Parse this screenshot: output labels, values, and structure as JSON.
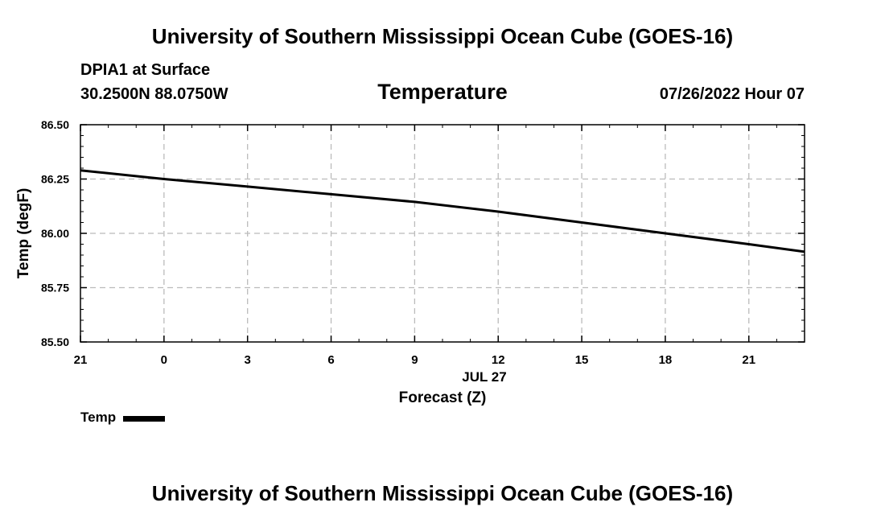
{
  "header": {
    "title": "University of Southern Mississippi Ocean Cube (GOES-16)",
    "station": "DPIA1 at Surface",
    "coordinates": "30.2500N  88.0750W",
    "chart_title": "Temperature",
    "valid_time": "07/26/2022 Hour 07"
  },
  "legend": {
    "label": "Temp"
  },
  "footer": {
    "title": "University of Southern Mississippi Ocean Cube (GOES-16)"
  },
  "colors": {
    "line": "#000000",
    "grid": "#bbbbbb",
    "background": "#ffffff"
  },
  "chart_data": {
    "type": "line",
    "title": "Temperature",
    "xlabel": "Forecast (Z)",
    "ylabel": "Temp (degF)",
    "date_label": "JUL 27",
    "xlim": [
      0,
      26
    ],
    "ylim": [
      85.5,
      86.5
    ],
    "x_ticks": [
      0,
      3,
      6,
      9,
      12,
      15,
      18,
      21,
      24
    ],
    "x_tick_labels": [
      "21",
      "0",
      "3",
      "6",
      "9",
      "12",
      "15",
      "18",
      "21"
    ],
    "y_ticks": [
      85.5,
      85.75,
      86.0,
      86.25,
      86.5
    ],
    "y_tick_labels": [
      "85.50",
      "85.75",
      "86.00",
      "86.25",
      "86.50"
    ],
    "grid": true,
    "series": [
      {
        "name": "Temp",
        "x": [
          0,
          3,
          6,
          9,
          12,
          15,
          18,
          21,
          24,
          26
        ],
        "y": [
          86.29,
          86.25,
          86.215,
          86.18,
          86.145,
          86.1,
          86.05,
          86.0,
          85.95,
          85.915
        ]
      }
    ]
  }
}
